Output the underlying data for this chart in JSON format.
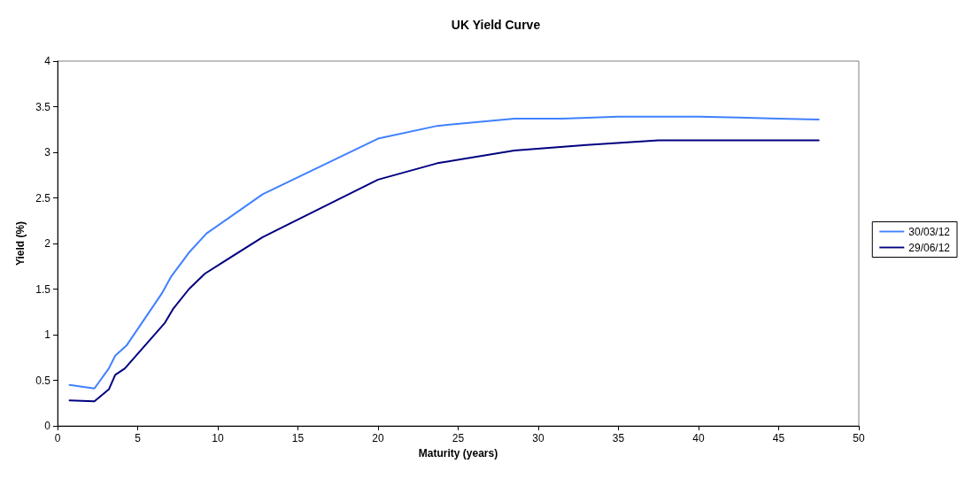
{
  "chart_data": {
    "type": "line",
    "title": "UK Yield Curve",
    "xlabel": "Maturity (years)",
    "ylabel": "Yield (%)",
    "xlim": [
      0,
      50
    ],
    "xticks": [
      0,
      5,
      10,
      15,
      20,
      25,
      30,
      35,
      40,
      45,
      50
    ],
    "ylim": [
      0,
      4
    ],
    "yticks": [
      0,
      0.5,
      1,
      1.5,
      2,
      2.5,
      3,
      3.5,
      4
    ],
    "grid": false,
    "legend": "right",
    "marker": "none",
    "line_style": "solid",
    "series": [
      {
        "name": "30/03/12",
        "color": "#4080ff",
        "x": [
          0.75,
          2.3,
          3.2,
          3.6,
          4.3,
          6.5,
          7.1,
          8.2,
          9.3,
          12.8,
          20,
          23.7,
          28.5,
          31.5,
          35,
          40,
          42.5,
          45,
          47.5
        ],
        "values": [
          0.45,
          0.41,
          0.63,
          0.77,
          0.88,
          1.45,
          1.64,
          1.9,
          2.11,
          2.54,
          3.15,
          3.29,
          3.37,
          3.37,
          3.39,
          3.39,
          3.38,
          3.37,
          3.36
        ]
      },
      {
        "name": "29/06/12",
        "color": "#000080",
        "x": [
          0.75,
          2.3,
          3.2,
          3.6,
          4.2,
          6.7,
          7.2,
          8.2,
          9.2,
          12.8,
          20,
          23.7,
          28.5,
          33,
          37.5,
          47.5
        ],
        "values": [
          0.28,
          0.27,
          0.4,
          0.56,
          0.63,
          1.13,
          1.28,
          1.5,
          1.67,
          2.07,
          2.7,
          2.88,
          3.02,
          3.08,
          3.13,
          3.13
        ]
      }
    ]
  }
}
